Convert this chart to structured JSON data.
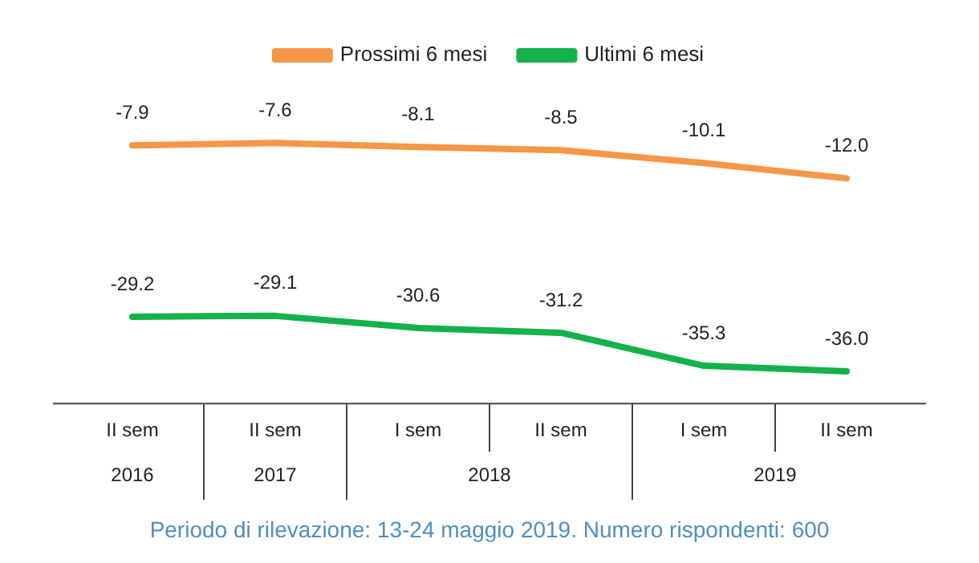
{
  "chart_data": {
    "type": "line",
    "categories": [
      "II sem",
      "II sem",
      "I sem",
      "II sem",
      "I sem",
      "II sem"
    ],
    "series": [
      {
        "name": "Prossimi 6 mesi",
        "color": "#f79646",
        "values": [
          -7.9,
          -7.6,
          -8.1,
          -8.5,
          -10.1,
          -12.0
        ],
        "value_labels": [
          "-7.9",
          "-7.6",
          "-8.1",
          "-8.5",
          "-10.1",
          "-12.0"
        ]
      },
      {
        "name": "Ultimi 6 mesi",
        "color": "#13b24b",
        "values": [
          -29.2,
          -29.1,
          -30.6,
          -31.2,
          -35.3,
          -36.0
        ],
        "value_labels": [
          "-29.2",
          "-29.1",
          "-30.6",
          "-31.2",
          "-35.3",
          "-36.0"
        ]
      }
    ],
    "legend": "top",
    "marker": "none",
    "line_style": "solid",
    "annotations": [
      "2016",
      "2017",
      "2018",
      "2019",
      "Periodo di rilevazione: 13-24 maggio 2019. Numero rispondenti: 600"
    ]
  }
}
